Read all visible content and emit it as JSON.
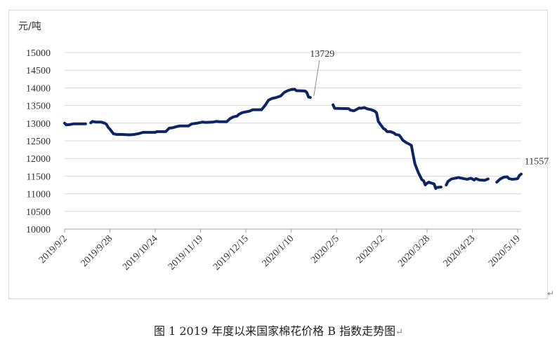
{
  "caption": "图 1  2019 年度以来国家棉花价格 B 指数走势图",
  "paragraph_mark": "↵",
  "chart_data": {
    "type": "line",
    "ylabel": "元/吨",
    "ylim": [
      10000,
      15000
    ],
    "yticks": [
      10000,
      10500,
      11000,
      11500,
      12000,
      12500,
      13000,
      13500,
      14000,
      14500,
      15000
    ],
    "x_tick_labels": [
      "2019/9/2",
      "2019/9/28",
      "2019/10/24",
      "2019/11/19",
      "2019/12/15",
      "2020/1/10",
      "2020/2/5",
      "2020/3/2",
      "2020/3/28",
      "2020/4/23",
      "2020/5/19"
    ],
    "x_tick_index": [
      0,
      26,
      52,
      78,
      104,
      130,
      156,
      182,
      208,
      234,
      260
    ],
    "x_index_range": [
      0,
      262
    ],
    "color": "#0d2566",
    "annotations": [
      {
        "text": "13729",
        "x": 143,
        "y": 13729
      },
      {
        "text": "11557",
        "x": 262,
        "y": 11557
      }
    ],
    "series": [
      {
        "segments": [
          [
            [
              0,
              13000
            ],
            [
              1,
              12950
            ],
            [
              3,
              12960
            ],
            [
              5,
              12980
            ],
            [
              8,
              12980
            ],
            [
              11,
              12980
            ],
            [
              12,
              12980
            ]
          ],
          [
            [
              15,
              13010
            ],
            [
              16,
              13050
            ],
            [
              18,
              13030
            ],
            [
              21,
              13030
            ],
            [
              23,
              13000
            ],
            [
              24,
              12970
            ],
            [
              25,
              12880
            ],
            [
              26,
              12830
            ],
            [
              28,
              12700
            ],
            [
              30,
              12680
            ],
            [
              33,
              12680
            ],
            [
              36,
              12670
            ],
            [
              38,
              12670
            ],
            [
              40,
              12680
            ],
            [
              43,
              12710
            ],
            [
              45,
              12740
            ],
            [
              48,
              12740
            ],
            [
              52,
              12740
            ],
            [
              53,
              12760
            ],
            [
              58,
              12760
            ],
            [
              60,
              12860
            ],
            [
              62,
              12870
            ],
            [
              64,
              12900
            ],
            [
              66,
              12920
            ],
            [
              71,
              12920
            ],
            [
              73,
              12980
            ],
            [
              76,
              13000
            ],
            [
              79,
              13030
            ],
            [
              81,
              13020
            ],
            [
              85,
              13030
            ],
            [
              87,
              13050
            ],
            [
              89,
              13040
            ],
            [
              93,
              13040
            ],
            [
              95,
              13130
            ],
            [
              97,
              13180
            ],
            [
              99,
              13200
            ],
            [
              100,
              13250
            ],
            [
              102,
              13300
            ],
            [
              104,
              13320
            ],
            [
              106,
              13340
            ],
            [
              108,
              13380
            ],
            [
              113,
              13380
            ],
            [
              115,
              13500
            ],
            [
              117,
              13650
            ],
            [
              119,
              13700
            ],
            [
              121,
              13720
            ],
            [
              124,
              13770
            ],
            [
              126,
              13870
            ],
            [
              128,
              13920
            ],
            [
              130,
              13950
            ],
            [
              132,
              13960
            ],
            [
              133,
              13920
            ],
            [
              138,
              13910
            ],
            [
              139,
              13870
            ],
            [
              140,
              13740
            ],
            [
              141,
              13729
            ]
          ],
          [
            [
              154,
              13520
            ],
            [
              155,
              13420
            ],
            [
              163,
              13410
            ],
            [
              164,
              13370
            ],
            [
              166,
              13350
            ],
            [
              168,
              13400
            ],
            [
              169,
              13430
            ],
            [
              170,
              13420
            ],
            [
              172,
              13440
            ],
            [
              174,
              13400
            ],
            [
              176,
              13380
            ],
            [
              178,
              13340
            ],
            [
              179,
              13290
            ],
            [
              180,
              13050
            ],
            [
              181,
              12980
            ],
            [
              183,
              12850
            ],
            [
              184,
              12820
            ],
            [
              185,
              12760
            ],
            [
              187,
              12760
            ],
            [
              189,
              12720
            ],
            [
              190,
              12680
            ],
            [
              192,
              12660
            ],
            [
              193,
              12600
            ],
            [
              194,
              12520
            ],
            [
              196,
              12450
            ],
            [
              198,
              12400
            ],
            [
              199,
              12370
            ],
            [
              200,
              12100
            ],
            [
              201,
              11850
            ],
            [
              203,
              11600
            ],
            [
              205,
              11400
            ],
            [
              206,
              11370
            ],
            [
              207,
              11250
            ],
            [
              208,
              11300
            ],
            [
              209,
              11330
            ],
            [
              210,
              11310
            ],
            [
              212,
              11280
            ],
            [
              213,
              11150
            ]
          ],
          [
            [
              214,
              11180
            ],
            [
              216,
              11190
            ]
          ],
          [
            [
              219,
              11250
            ],
            [
              220,
              11350
            ],
            [
              222,
              11420
            ],
            [
              224,
              11440
            ],
            [
              226,
              11460
            ],
            [
              227,
              11450
            ],
            [
              229,
              11430
            ],
            [
              231,
              11410
            ],
            [
              233,
              11440
            ],
            [
              234,
              11420
            ],
            [
              235,
              11390
            ],
            [
              236,
              11430
            ],
            [
              238,
              11390
            ],
            [
              241,
              11380
            ],
            [
              243,
              11420
            ]
          ],
          [
            [
              248,
              11330
            ],
            [
              250,
              11420
            ],
            [
              252,
              11470
            ],
            [
              254,
              11480
            ],
            [
              255,
              11430
            ],
            [
              257,
              11410
            ],
            [
              259,
              11420
            ],
            [
              260,
              11430
            ],
            [
              261,
              11520
            ],
            [
              262,
              11557
            ]
          ]
        ]
      }
    ]
  }
}
